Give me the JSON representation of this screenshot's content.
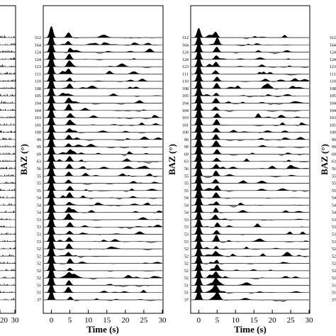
{
  "chart_data": [
    {
      "type": "line",
      "description": "receiver function record section, left panel (partially visible)",
      "xlim": [
        0,
        30
      ],
      "x_ticks": [
        20,
        30
      ],
      "xlabel": "",
      "ylabel": ""
    },
    {
      "type": "line",
      "description": "receiver function record section, middle panel",
      "xlim": [
        -2,
        30
      ],
      "x_ticks": [
        0,
        5,
        10,
        15,
        20,
        25,
        30
      ],
      "xlabel": "Time (s)",
      "ylabel": "BAZ (°)",
      "baz_labels": [
        "312",
        "164",
        "124",
        "124",
        "123",
        "111",
        "110",
        "108",
        "105",
        "104",
        "104",
        "103",
        "101",
        "100",
        "99",
        "99",
        "69",
        "63",
        "56",
        "55",
        "55",
        "55",
        "54",
        "54",
        "54",
        "53",
        "53",
        "53",
        "53",
        "52",
        "52",
        "52",
        "52",
        "52",
        "51",
        "51",
        "37"
      ],
      "pulse_shape": "positive lobes filled black, negative lobes filled grey",
      "direct_p_peak_s": 0.0,
      "ps_arrival_s": 4.8
    },
    {
      "type": "line",
      "description": "receiver function record section, right panel",
      "xlim": [
        -2,
        30
      ],
      "x_ticks": [
        0,
        5,
        10,
        15,
        20,
        25,
        30
      ],
      "xlabel": "Time (s)",
      "ylabel": "BAZ (°)",
      "baz_labels": [
        "312",
        "164",
        "124",
        "124",
        "123",
        "111",
        "110",
        "108",
        "105",
        "104",
        "104",
        "103",
        "101",
        "100",
        "99",
        "99",
        "69",
        "63",
        "56",
        "55",
        "55",
        "55",
        "54",
        "54",
        "54",
        "53",
        "53",
        "53",
        "53",
        "52",
        "52",
        "52",
        "52",
        "52",
        "51",
        "51",
        "37"
      ],
      "pulse_shape": "positive lobes filled black, negative lobes filled grey",
      "direct_p_peak_s": 0.0,
      "ps_arrival_s": 4.8
    }
  ],
  "labels": {
    "baz_title": "BAZ (°)",
    "time_title": "Time (s)"
  },
  "colors": {
    "positive_fill": "#000000",
    "negative_fill": "#8c8c8c",
    "baseline": "#000000",
    "frame": "#000000"
  }
}
